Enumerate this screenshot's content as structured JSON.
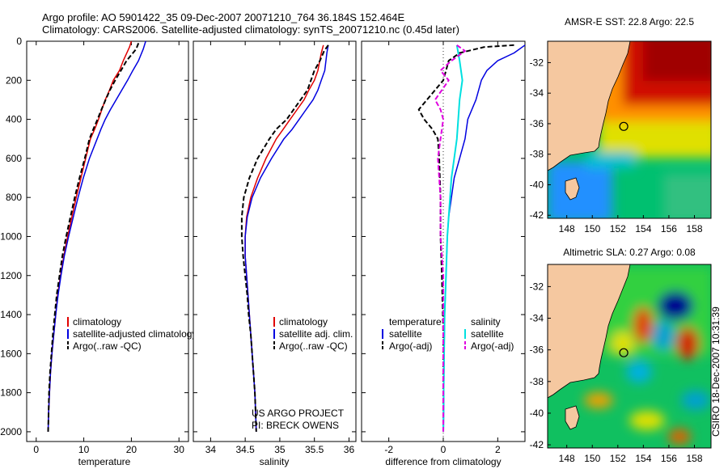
{
  "titles": {
    "line1": "Argo profile: AO 5901422_35 09-Dec-2007 20071210_764 36.184S 152.464E",
    "line2": "Climatology: CARS2006. Satellite-adjusted climatology: synTS_20071210.nc (0.45d later)"
  },
  "side_caption": "CSIRO 18-Dec-2007 10:31:39",
  "credit": {
    "line1": "US ARGO PROJECT",
    "line2": "PI: BRECK OWENS"
  },
  "colors": {
    "climatology": "#e00000",
    "satellite": "#0000e0",
    "argo": "#000000",
    "sat_salinity": "#00e0e0",
    "argo_salinity_adj": "#e000e0",
    "land": "#f5c8a0"
  },
  "chart_data": [
    {
      "type": "line",
      "id": "temperature",
      "xlabel": "temperature",
      "ylabel": "",
      "xlim": [
        -2,
        32
      ],
      "ylim": [
        2050,
        0
      ],
      "y_reversed": true,
      "xticks": [
        0,
        10,
        20,
        30
      ],
      "yticks": [
        0,
        200,
        400,
        600,
        800,
        1000,
        1200,
        1400,
        1600,
        1800,
        2000
      ],
      "legend": [
        "climatology",
        "satellite-adjusted climatology",
        "Argo(..raw -QC)"
      ],
      "series": [
        {
          "name": "climatology",
          "color": "#e00000",
          "dash": false,
          "width": 1.5,
          "points": [
            [
              20.0,
              0
            ],
            [
              19.6,
              30
            ],
            [
              18.3,
              100
            ],
            [
              17.5,
              150
            ],
            [
              16.2,
              200
            ],
            [
              15.4,
              250
            ],
            [
              14.5,
              300
            ],
            [
              13.8,
              350
            ],
            [
              13.1,
              400
            ],
            [
              12.3,
              450
            ],
            [
              11.4,
              500
            ],
            [
              10.4,
              600
            ],
            [
              9.4,
              700
            ],
            [
              8.4,
              800
            ],
            [
              7.5,
              900
            ],
            [
              6.6,
              1000
            ],
            [
              5.8,
              1100
            ],
            [
              5.1,
              1200
            ],
            [
              4.5,
              1300
            ],
            [
              4.1,
              1400
            ],
            [
              3.7,
              1500
            ],
            [
              3.3,
              1600
            ],
            [
              3.0,
              1700
            ],
            [
              2.8,
              1800
            ],
            [
              2.6,
              1900
            ],
            [
              2.5,
              2000
            ]
          ]
        },
        {
          "name": "satellite-adjusted climatology",
          "color": "#0000e0",
          "dash": false,
          "width": 1.5,
          "points": [
            [
              23.0,
              0
            ],
            [
              22.5,
              40
            ],
            [
              21.5,
              100
            ],
            [
              20.3,
              150
            ],
            [
              19.2,
              200
            ],
            [
              18.0,
              250
            ],
            [
              16.8,
              300
            ],
            [
              15.6,
              350
            ],
            [
              14.5,
              400
            ],
            [
              13.6,
              450
            ],
            [
              12.8,
              500
            ],
            [
              11.2,
              600
            ],
            [
              9.9,
              700
            ],
            [
              8.8,
              800
            ],
            [
              7.8,
              900
            ],
            [
              6.8,
              1000
            ],
            [
              5.9,
              1100
            ],
            [
              5.2,
              1200
            ],
            [
              4.6,
              1300
            ],
            [
              4.1,
              1400
            ],
            [
              3.7,
              1500
            ],
            [
              3.3,
              1600
            ],
            [
              3.0,
              1700
            ],
            [
              2.8,
              1800
            ],
            [
              2.6,
              1900
            ],
            [
              2.5,
              2000
            ]
          ]
        },
        {
          "name": "Argo(..raw -QC)",
          "color": "#000000",
          "dash": true,
          "width": 2,
          "points": [
            [
              21.5,
              10
            ],
            [
              21.0,
              40
            ],
            [
              19.0,
              100
            ],
            [
              17.8,
              150
            ],
            [
              16.6,
              200
            ],
            [
              15.5,
              250
            ],
            [
              14.6,
              300
            ],
            [
              13.7,
              350
            ],
            [
              12.9,
              400
            ],
            [
              12.0,
              450
            ],
            [
              11.2,
              500
            ],
            [
              10.2,
              600
            ],
            [
              9.1,
              700
            ],
            [
              8.1,
              800
            ],
            [
              7.2,
              900
            ],
            [
              6.3,
              1000
            ],
            [
              5.5,
              1100
            ],
            [
              4.9,
              1200
            ],
            [
              4.3,
              1300
            ],
            [
              3.9,
              1400
            ],
            [
              3.5,
              1500
            ],
            [
              3.2,
              1600
            ],
            [
              2.9,
              1700
            ],
            [
              2.7,
              1800
            ],
            [
              2.6,
              1900
            ],
            [
              2.5,
              2000
            ]
          ]
        }
      ]
    },
    {
      "type": "line",
      "id": "salinity",
      "xlabel": "salinity",
      "ylabel": "",
      "xlim": [
        33.75,
        36.1
      ],
      "ylim": [
        2050,
        0
      ],
      "y_reversed": true,
      "xticks": [
        34,
        34.5,
        35,
        35.5,
        36
      ],
      "legend": [
        "climatology",
        "satellite adj. clim.",
        "Argo(..raw -QC)"
      ],
      "series": [
        {
          "name": "climatology",
          "color": "#e00000",
          "dash": false,
          "width": 1.5,
          "points": [
            [
              35.63,
              20
            ],
            [
              35.6,
              60
            ],
            [
              35.55,
              150
            ],
            [
              35.5,
              200
            ],
            [
              35.42,
              250
            ],
            [
              35.35,
              300
            ],
            [
              35.25,
              350
            ],
            [
              35.15,
              400
            ],
            [
              35.05,
              450
            ],
            [
              34.95,
              500
            ],
            [
              34.8,
              600
            ],
            [
              34.68,
              700
            ],
            [
              34.58,
              800
            ],
            [
              34.52,
              900
            ],
            [
              34.5,
              1000
            ],
            [
              34.5,
              1100
            ],
            [
              34.52,
              1200
            ],
            [
              34.54,
              1300
            ],
            [
              34.56,
              1400
            ],
            [
              34.58,
              1500
            ],
            [
              34.6,
              1600
            ],
            [
              34.62,
              1700
            ],
            [
              34.64,
              1800
            ],
            [
              34.65,
              1900
            ],
            [
              34.66,
              2000
            ]
          ]
        },
        {
          "name": "satellite adj. clim.",
          "color": "#0000e0",
          "dash": false,
          "width": 1.5,
          "points": [
            [
              35.7,
              20
            ],
            [
              35.68,
              60
            ],
            [
              35.65,
              150
            ],
            [
              35.6,
              200
            ],
            [
              35.55,
              250
            ],
            [
              35.48,
              300
            ],
            [
              35.38,
              350
            ],
            [
              35.28,
              400
            ],
            [
              35.18,
              450
            ],
            [
              35.06,
              500
            ],
            [
              34.88,
              600
            ],
            [
              34.72,
              700
            ],
            [
              34.6,
              800
            ],
            [
              34.53,
              900
            ],
            [
              34.5,
              1000
            ],
            [
              34.5,
              1100
            ],
            [
              34.52,
              1200
            ],
            [
              34.54,
              1300
            ],
            [
              34.56,
              1400
            ],
            [
              34.58,
              1500
            ],
            [
              34.6,
              1600
            ],
            [
              34.62,
              1700
            ],
            [
              34.64,
              1800
            ],
            [
              34.65,
              1900
            ],
            [
              34.66,
              2000
            ]
          ]
        },
        {
          "name": "Argo(..raw -QC)",
          "color": "#000000",
          "dash": true,
          "width": 2,
          "points": [
            [
              35.7,
              20
            ],
            [
              35.64,
              50
            ],
            [
              35.58,
              100
            ],
            [
              35.5,
              150
            ],
            [
              35.45,
              200
            ],
            [
              35.4,
              250
            ],
            [
              35.3,
              300
            ],
            [
              35.2,
              350
            ],
            [
              35.1,
              400
            ],
            [
              34.95,
              450
            ],
            [
              34.85,
              500
            ],
            [
              34.68,
              600
            ],
            [
              34.56,
              700
            ],
            [
              34.48,
              800
            ],
            [
              34.45,
              900
            ],
            [
              34.45,
              1000
            ],
            [
              34.47,
              1100
            ],
            [
              34.5,
              1200
            ],
            [
              34.53,
              1300
            ],
            [
              34.55,
              1400
            ],
            [
              34.58,
              1500
            ],
            [
              34.6,
              1600
            ],
            [
              34.62,
              1700
            ],
            [
              34.64,
              1800
            ],
            [
              34.65,
              1900
            ],
            [
              34.66,
              2000
            ]
          ]
        }
      ]
    },
    {
      "type": "line",
      "id": "difference",
      "xlabel": "difference from climatology",
      "ylabel": "",
      "xlim": [
        -3,
        3
      ],
      "ylim": [
        2050,
        0
      ],
      "y_reversed": true,
      "xticks": [
        -2,
        0,
        2
      ],
      "zero_line": true,
      "legend_groups": [
        {
          "heading": "temperature",
          "items": [
            "satellite",
            "Argo(-adj)"
          ]
        },
        {
          "heading": "salinity",
          "items": [
            "satellite",
            "Argo(-adj)"
          ]
        }
      ],
      "series": [
        {
          "name": "temperature satellite",
          "color": "#0000e0",
          "dash": false,
          "width": 1.5,
          "points": [
            [
              3.0,
              20
            ],
            [
              2.6,
              60
            ],
            [
              2.0,
              100
            ],
            [
              1.6,
              150
            ],
            [
              1.4,
              200
            ],
            [
              1.2,
              300
            ],
            [
              0.9,
              400
            ],
            [
              0.8,
              500
            ],
            [
              0.6,
              600
            ],
            [
              0.4,
              700
            ],
            [
              0.3,
              800
            ],
            [
              0.2,
              900
            ],
            [
              0.15,
              1000
            ],
            [
              0.1,
              1200
            ],
            [
              0.05,
              1400
            ],
            [
              0.03,
              1600
            ],
            [
              0.02,
              1800
            ],
            [
              0.01,
              2000
            ]
          ]
        },
        {
          "name": "temperature Argo(-adj)",
          "color": "#000000",
          "dash": true,
          "width": 2,
          "points": [
            [
              2.6,
              20
            ],
            [
              1.5,
              30
            ],
            [
              0.6,
              60
            ],
            [
              0.2,
              100
            ],
            [
              0.1,
              150
            ],
            [
              0.0,
              200
            ],
            [
              -0.6,
              300
            ],
            [
              -0.9,
              350
            ],
            [
              -0.7,
              400
            ],
            [
              -0.4,
              450
            ],
            [
              -0.2,
              500
            ],
            [
              -0.15,
              600
            ],
            [
              -0.1,
              800
            ],
            [
              -0.1,
              1000
            ],
            [
              -0.05,
              1200
            ],
            [
              0.0,
              1500
            ],
            [
              0.0,
              1800
            ],
            [
              0.0,
              2000
            ]
          ]
        },
        {
          "name": "salinity satellite",
          "color": "#00e0e0",
          "dash": false,
          "width": 2,
          "points": [
            [
              0.5,
              20
            ],
            [
              0.6,
              100
            ],
            [
              0.7,
              200
            ],
            [
              0.6,
              300
            ],
            [
              0.55,
              400
            ],
            [
              0.5,
              500
            ],
            [
              0.4,
              600
            ],
            [
              0.3,
              700
            ],
            [
              0.25,
              800
            ],
            [
              0.2,
              900
            ],
            [
              0.15,
              1000
            ],
            [
              0.1,
              1200
            ],
            [
              0.05,
              1400
            ],
            [
              0.02,
              1700
            ],
            [
              0.0,
              2000
            ]
          ]
        },
        {
          "name": "salinity Argo(-adj)",
          "color": "#e000e0",
          "dash": true,
          "width": 2,
          "points": [
            [
              0.5,
              20
            ],
            [
              0.8,
              50
            ],
            [
              0.3,
              100
            ],
            [
              -0.1,
              150
            ],
            [
              0.2,
              200
            ],
            [
              -0.3,
              300
            ],
            [
              -0.1,
              350
            ],
            [
              0.0,
              400
            ],
            [
              -0.1,
              500
            ],
            [
              -0.2,
              600
            ],
            [
              -0.1,
              800
            ],
            [
              -0.1,
              1000
            ],
            [
              0.0,
              1200
            ],
            [
              0.0,
              1600
            ],
            [
              0.0,
              2000
            ]
          ]
        }
      ]
    },
    {
      "type": "heatmap",
      "id": "sst-map",
      "title": "AMSR-E SST: 22.8 Argo: 22.5",
      "xlim": [
        146.5,
        159.3
      ],
      "ylim": [
        -42.2,
        -30.6
      ],
      "xticks": [
        148,
        150,
        152,
        154,
        156,
        158
      ],
      "yticks": [
        -32,
        -34,
        -36,
        -38,
        -40,
        -42
      ],
      "argo_position": {
        "lon": 152.46,
        "lat": -36.18
      }
    },
    {
      "type": "heatmap",
      "id": "sla-map",
      "title": "Altimetric SLA: 0.27 Argo: 0.08",
      "xlim": [
        146.5,
        159.3
      ],
      "ylim": [
        -42.2,
        -30.6
      ],
      "xticks": [
        148,
        150,
        152,
        154,
        156,
        158
      ],
      "yticks": [
        -32,
        -34,
        -36,
        -38,
        -40,
        -42
      ],
      "argo_position": {
        "lon": 152.46,
        "lat": -36.18
      }
    }
  ]
}
